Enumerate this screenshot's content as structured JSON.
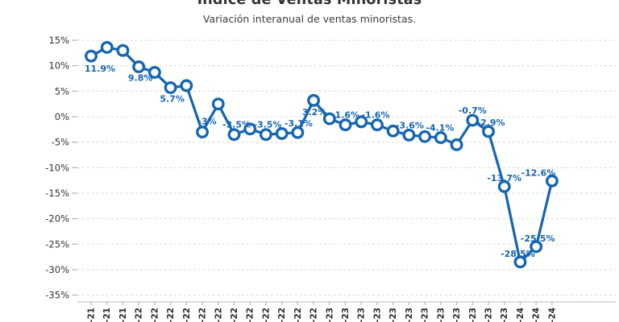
{
  "chart_data": {
    "type": "line",
    "title": "Índice de Ventas Minoristas",
    "subtitle": "Variación interanual de ventas minoristas.",
    "x_tick_labels": [
      "-21",
      "-21",
      "-21",
      "-22",
      "-22",
      "-22",
      "-22",
      "-22",
      "-22",
      "-22",
      "-22",
      "-22",
      "-22",
      "-22",
      "-22",
      "-23",
      "-23",
      "-23",
      "-23",
      "-23",
      "-23",
      "-23",
      "-23",
      "-23",
      "-23",
      "-23",
      "-23",
      "-24",
      "-24",
      "-24"
    ],
    "values": [
      11.9,
      13.6,
      13.0,
      9.8,
      8.7,
      5.7,
      6.1,
      -3.0,
      2.5,
      -3.5,
      -2.4,
      -3.5,
      -3.3,
      -3.1,
      3.2,
      -0.4,
      -1.6,
      -1.0,
      -1.6,
      -2.8,
      -3.6,
      -3.9,
      -4.1,
      -5.5,
      -0.7,
      -2.9,
      -13.7,
      -28.5,
      -25.5,
      -12.6
    ],
    "point_labels": [
      "11.9%",
      null,
      null,
      "9.8%",
      null,
      "5.7%",
      null,
      "-3%",
      null,
      "-3.5%",
      null,
      "-3.5%",
      null,
      "-3.1%",
      "3.2%",
      null,
      "-1.6%",
      null,
      "-1.6%",
      null,
      "-3.6%",
      null,
      "-4.1%",
      null,
      "-0.7%",
      "-2.9%",
      "-13.7%",
      "-28.5%",
      "-25.5%",
      "-12.6%"
    ],
    "y_ticks": [
      15,
      10,
      5,
      0,
      -5,
      -10,
      -15,
      -20,
      -25,
      -30,
      -35
    ],
    "y_tick_labels": [
      "15%",
      "10%",
      "5%",
      "0%",
      "-5%",
      "-10%",
      "-15%",
      "-20%",
      "-25%",
      "-30%",
      "-35%"
    ],
    "ylim": [
      -35,
      15
    ],
    "grid": true,
    "legend": "none",
    "line_color": "#1565b1",
    "label_color": "#1565b1",
    "marker": "open-circle",
    "marker_fill": "#ffffff",
    "grid_color": "#d8d8d8",
    "axis_text_color": "#333333",
    "background": "#ffffff"
  }
}
